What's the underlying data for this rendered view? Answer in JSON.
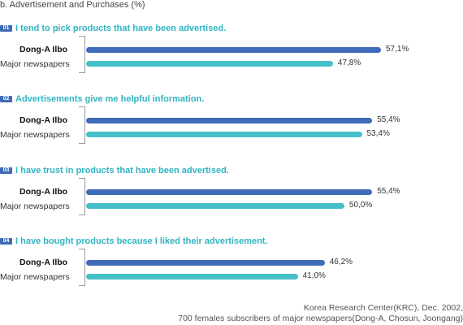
{
  "chart_data": {
    "type": "bar",
    "title": "b. Advertisement and Purchases (%)",
    "series_labels": [
      "Dong-A Ilbo",
      "Major newspapers"
    ],
    "colors": {
      "dong": "#3f6bb8",
      "major": "#45c0c8"
    },
    "questions": [
      {
        "badge": "01",
        "text": "I tend to pick products that have been advertised.",
        "values": [
          57.1,
          47.8
        ],
        "value_labels": [
          "57,1%",
          "47,8%"
        ]
      },
      {
        "badge": "02",
        "text": "Advertisements give me helpful information.",
        "values": [
          55.4,
          53.4
        ],
        "value_labels": [
          "55,4%",
          "53,4%"
        ]
      },
      {
        "badge": "03",
        "text": "I have trust in products that have been advertised.",
        "values": [
          55.4,
          50.0
        ],
        "value_labels": [
          "55,4%",
          "50,0%"
        ]
      },
      {
        "badge": "04",
        "text": "I have bought products because I liked their advertisement.",
        "values": [
          46.2,
          41.0
        ],
        "value_labels": [
          "46,2%",
          "41,0%"
        ]
      }
    ]
  },
  "source": {
    "line1": "Korea Research Center(KRC), Dec. 2002,",
    "line2": "700 females subscribers of major newspapers(Dong-A, Chosun, Joongang)"
  }
}
